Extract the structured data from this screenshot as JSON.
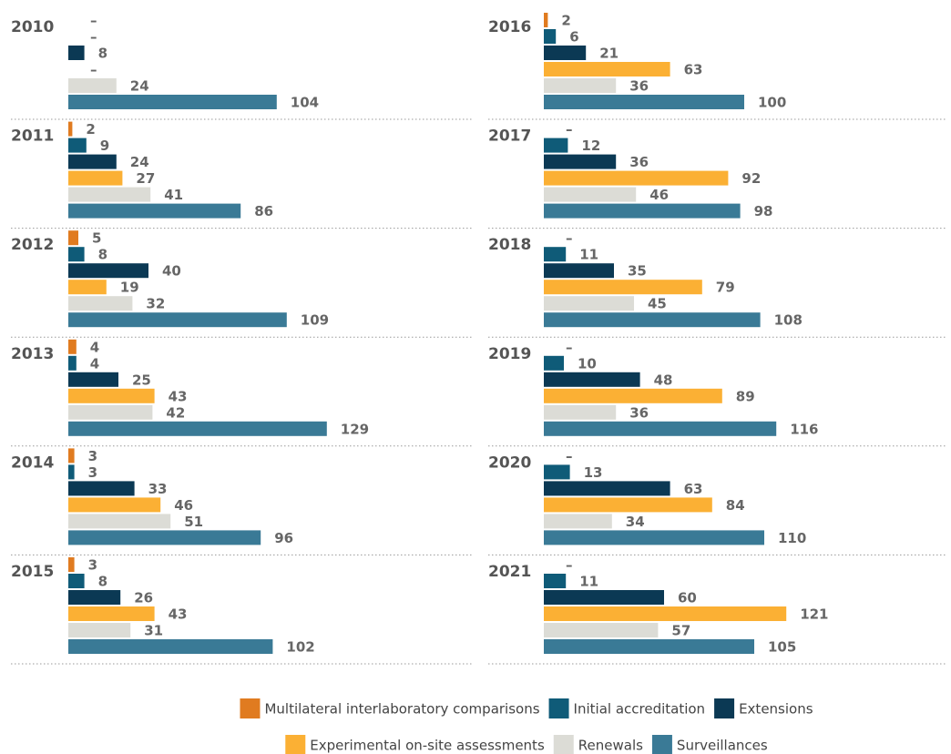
{
  "chart_data": {
    "type": "bar",
    "orientation": "horizontal",
    "categories": [
      "2010",
      "2011",
      "2012",
      "2013",
      "2014",
      "2015",
      "2016",
      "2017",
      "2018",
      "2019",
      "2020",
      "2021"
    ],
    "series": [
      {
        "name": "Multilateral interlaboratory comparisons",
        "color": "#e07b20",
        "values": [
          null,
          2,
          5,
          4,
          3,
          3,
          2,
          null,
          null,
          null,
          null,
          null
        ],
        "value_labels": [
          "–",
          "2",
          "5",
          "4",
          "3",
          "3",
          "2",
          "–",
          "–",
          "–",
          "–",
          "–"
        ]
      },
      {
        "name": "Initial accreditation",
        "color": "#0f5b78",
        "values": [
          null,
          9,
          8,
          4,
          3,
          8,
          6,
          12,
          11,
          10,
          13,
          11
        ],
        "value_labels": [
          "–",
          "9",
          "8",
          "4",
          "3",
          "8",
          "6",
          "12",
          "11",
          "10",
          "13",
          "11"
        ]
      },
      {
        "name": "Extensions",
        "color": "#0b3954",
        "values": [
          8,
          24,
          40,
          25,
          33,
          26,
          21,
          36,
          35,
          48,
          63,
          60
        ],
        "value_labels": [
          "8",
          "24",
          "40",
          "25",
          "33",
          "26",
          "21",
          "36",
          "35",
          "48",
          "63",
          "60"
        ]
      },
      {
        "name": "Experimental on-site assessments",
        "color": "#fbb034",
        "values": [
          null,
          27,
          19,
          43,
          46,
          43,
          63,
          92,
          79,
          89,
          84,
          121
        ],
        "value_labels": [
          "–",
          "27",
          "19",
          "43",
          "46",
          "43",
          "63",
          "92",
          "79",
          "89",
          "84",
          "121"
        ]
      },
      {
        "name": "Renewals",
        "color": "#dcdcd6",
        "values": [
          24,
          41,
          32,
          42,
          51,
          31,
          36,
          46,
          45,
          36,
          34,
          57
        ],
        "value_labels": [
          "24",
          "41",
          "32",
          "42",
          "51",
          "31",
          "36",
          "46",
          "45",
          "36",
          "34",
          "57"
        ]
      },
      {
        "name": "Surveillances",
        "color": "#3a7a96",
        "values": [
          104,
          86,
          109,
          129,
          96,
          102,
          100,
          98,
          108,
          116,
          110,
          105
        ],
        "value_labels": [
          "104",
          "86",
          "109",
          "129",
          "96",
          "102",
          "100",
          "98",
          "108",
          "116",
          "110",
          "105"
        ]
      }
    ]
  }
}
